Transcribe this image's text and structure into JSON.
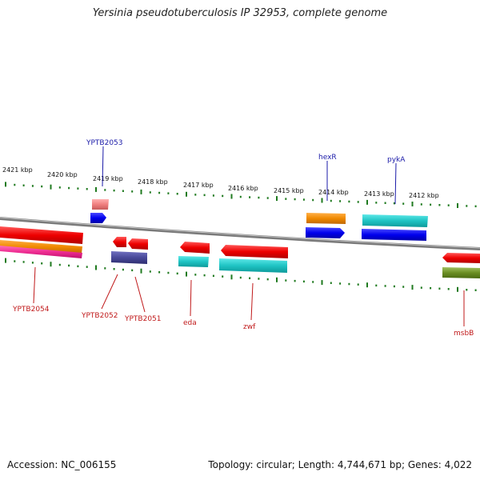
{
  "title": "Yersinia pseudotuberculosis IP 32953, complete genome",
  "footer": {
    "accession": "Accession: NC_006155",
    "summary": "Topology: circular; Length: 4,744,671 bp; Genes: 4,022"
  },
  "ruler_labels": [
    {
      "text": "2421 kbp"
    },
    {
      "text": "2420 kbp"
    },
    {
      "text": "2419 kbp"
    },
    {
      "text": "2418 kbp"
    },
    {
      "text": "2417 kbp"
    },
    {
      "text": "2416 kbp"
    },
    {
      "text": "2415 kbp"
    },
    {
      "text": "2414 kbp"
    },
    {
      "text": "2413 kbp"
    },
    {
      "text": "2412 kbp"
    }
  ],
  "gene_labels_top": [
    {
      "text": "YPTB2053"
    },
    {
      "text": "hexR"
    },
    {
      "text": "pykA"
    }
  ],
  "gene_labels_bottom": [
    {
      "text": "YPTB2054"
    },
    {
      "text": "YPTB2052"
    },
    {
      "text": "YPTB2051"
    },
    {
      "text": "eda"
    },
    {
      "text": "zwf"
    },
    {
      "text": "msbB"
    }
  ],
  "colors": {
    "backbone": "#8a8a8a",
    "tick": "#1f7a1f",
    "label_top": "#1a1aa8",
    "label_bottom": "#c0191a"
  }
}
